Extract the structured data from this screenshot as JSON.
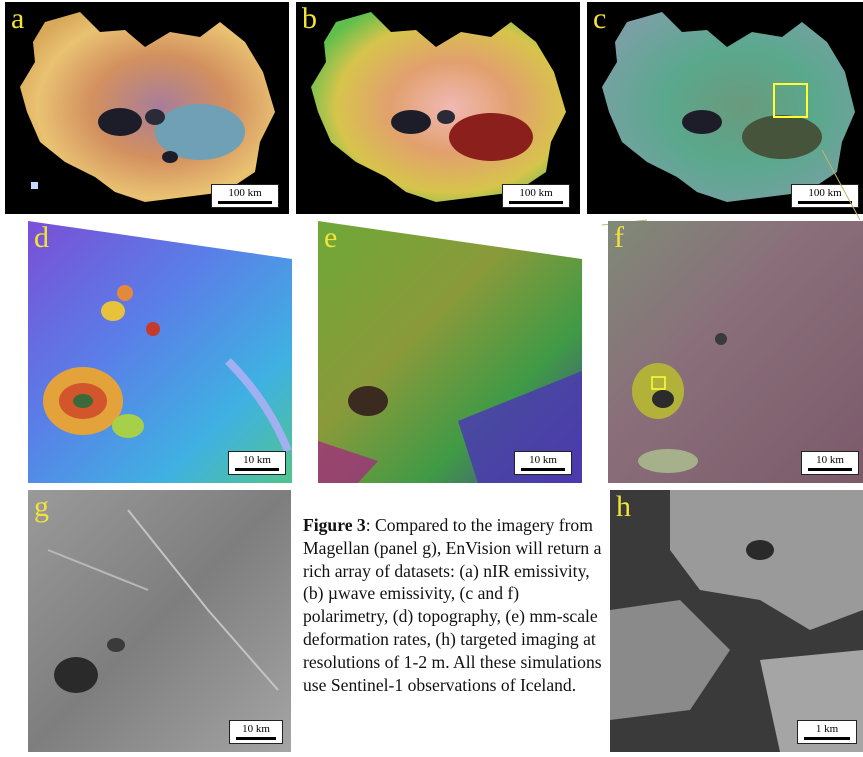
{
  "panels": {
    "a": {
      "label": "a",
      "scale": "100 km"
    },
    "b": {
      "label": "b",
      "scale": "100 km"
    },
    "c": {
      "label": "c",
      "scale": "100 km"
    },
    "d": {
      "label": "d",
      "scale": "10 km"
    },
    "e": {
      "label": "e",
      "scale": "10 km"
    },
    "f": {
      "label": "f",
      "scale": "10 km"
    },
    "g": {
      "label": "g",
      "scale": "10 km"
    },
    "h": {
      "label": "h",
      "scale": "1 km"
    }
  },
  "caption": {
    "title": "Figure 3",
    "body": ": Compared to the imagery from Magellan (panel g), EnVision will return a rich array of datasets: (a) nIR emissivity, (b) µwave emissivity, (c and f) polarimetry, (d) topography, (e) mm-scale deformation rates, (h) targeted imaging at resolutions of 1-2 m. All these simulations use Sentinel-1 observations of Iceland."
  },
  "colors": {
    "label": "#f2e23a",
    "highlight_box": "#ffff33"
  }
}
